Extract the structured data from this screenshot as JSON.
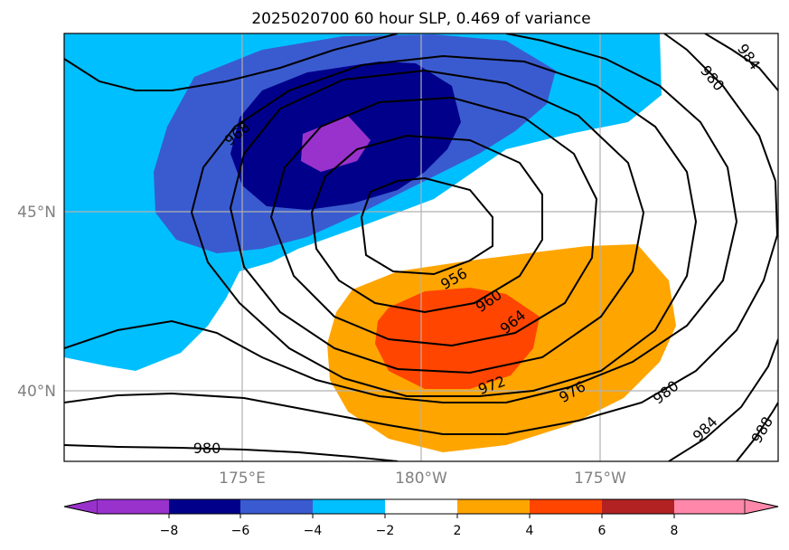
{
  "title": "2025020700 60 hour SLP, 0.469 of variance",
  "map": {
    "lon_ticks": [
      "175°E",
      "180°W",
      "175°W"
    ],
    "lat_ticks": [
      "45°N",
      "40°N"
    ],
    "gridlines": true
  },
  "contours": {
    "slp_labels": [
      "968",
      "956",
      "960",
      "964",
      "972",
      "976",
      "980",
      "984",
      "988",
      "980",
      "980",
      "984"
    ]
  },
  "colorbar": {
    "ticks": [
      "−8",
      "−6",
      "−4",
      "−2",
      "2",
      "4",
      "6",
      "8"
    ],
    "colors": [
      "#9932cc",
      "#00008b",
      "#3a5bd0",
      "#00bfff",
      "#ffffff",
      "#ffa500",
      "#ff4500",
      "#b22222",
      "#ff88aa"
    ],
    "extend": "both"
  },
  "fill_colors": {
    "purple": "#9932cc",
    "navy": "#00008b",
    "royal": "#3a5bd0",
    "sky": "#00bfff",
    "orange": "#ffa500",
    "red": "#ff4500"
  }
}
